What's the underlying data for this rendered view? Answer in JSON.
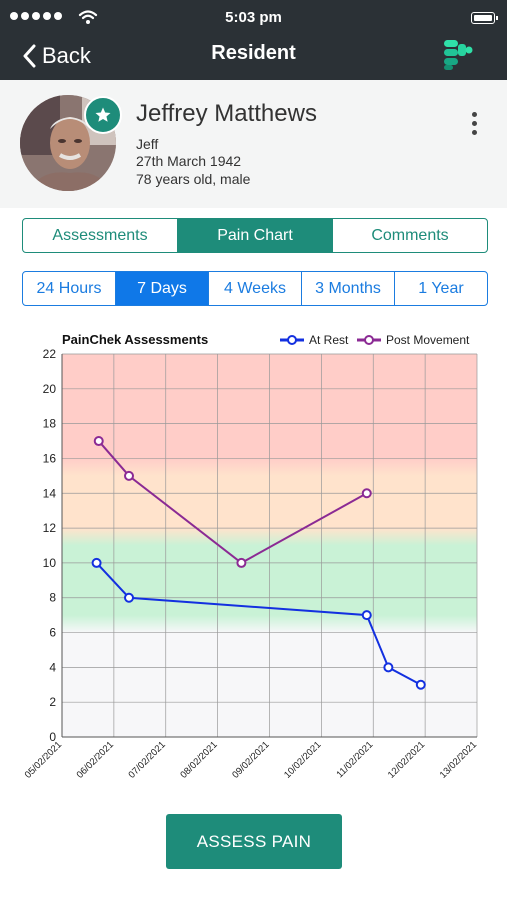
{
  "status_bar": {
    "time": "5:03 pm"
  },
  "nav": {
    "back_label": "Back",
    "title": "Resident",
    "logo_icon": "painchek-logo-icon"
  },
  "resident": {
    "name": "Jeffrey Matthews",
    "nickname": "Jeff",
    "dob": "27th March 1942",
    "age_sex": "78 years old, male"
  },
  "tabs": [
    {
      "label": "Assessments",
      "active": false
    },
    {
      "label": "Pain Chart",
      "active": true
    },
    {
      "label": "Comments",
      "active": false
    }
  ],
  "ranges": [
    {
      "label": "24 Hours",
      "active": false
    },
    {
      "label": "7 Days",
      "active": true
    },
    {
      "label": "4 Weeks",
      "active": false
    },
    {
      "label": "3 Months",
      "active": false
    },
    {
      "label": "1 Year",
      "active": false
    }
  ],
  "chart_data": {
    "type": "line",
    "title": "PainChek Assessments",
    "xlabel": "",
    "ylabel": "",
    "x_ticks": [
      "05/02/2021",
      "06/02/2021",
      "07/02/2021",
      "08/02/2021",
      "09/02/2021",
      "10/02/2021",
      "11/02/2021",
      "12/02/2021",
      "13/02/2021"
    ],
    "ylim": [
      0,
      22
    ],
    "y_ticks": [
      0,
      2,
      4,
      6,
      8,
      10,
      12,
      14,
      16,
      18,
      20,
      22
    ],
    "grid": true,
    "legend_position": "top-right",
    "bands": [
      {
        "from": 0,
        "to": 6,
        "color": "#f7f7f9"
      },
      {
        "from": 7,
        "to": 11,
        "color": "#c9f2d6"
      },
      {
        "from": 12,
        "to": 15,
        "color": "#ffe3cc"
      },
      {
        "from": 16,
        "to": 22,
        "color": "#ffcdc8"
      }
    ],
    "series": [
      {
        "name": "At Rest",
        "color": "#1330e0",
        "points": [
          {
            "x": "05/02/2021 16:00",
            "y": 10
          },
          {
            "x": "06/02/2021 07:00",
            "y": 8
          },
          {
            "x": "10/02/2021 21:00",
            "y": 7
          },
          {
            "x": "11/02/2021 07:00",
            "y": 4
          },
          {
            "x": "11/02/2021 22:00",
            "y": 3
          }
        ]
      },
      {
        "name": "Post Movement",
        "color": "#8b2a94",
        "points": [
          {
            "x": "05/02/2021 17:00",
            "y": 17
          },
          {
            "x": "06/02/2021 07:00",
            "y": 15
          },
          {
            "x": "08/02/2021 11:00",
            "y": 10
          },
          {
            "x": "10/02/2021 21:00",
            "y": 14
          }
        ]
      }
    ]
  },
  "assess_button_label": "ASSESS PAIN"
}
